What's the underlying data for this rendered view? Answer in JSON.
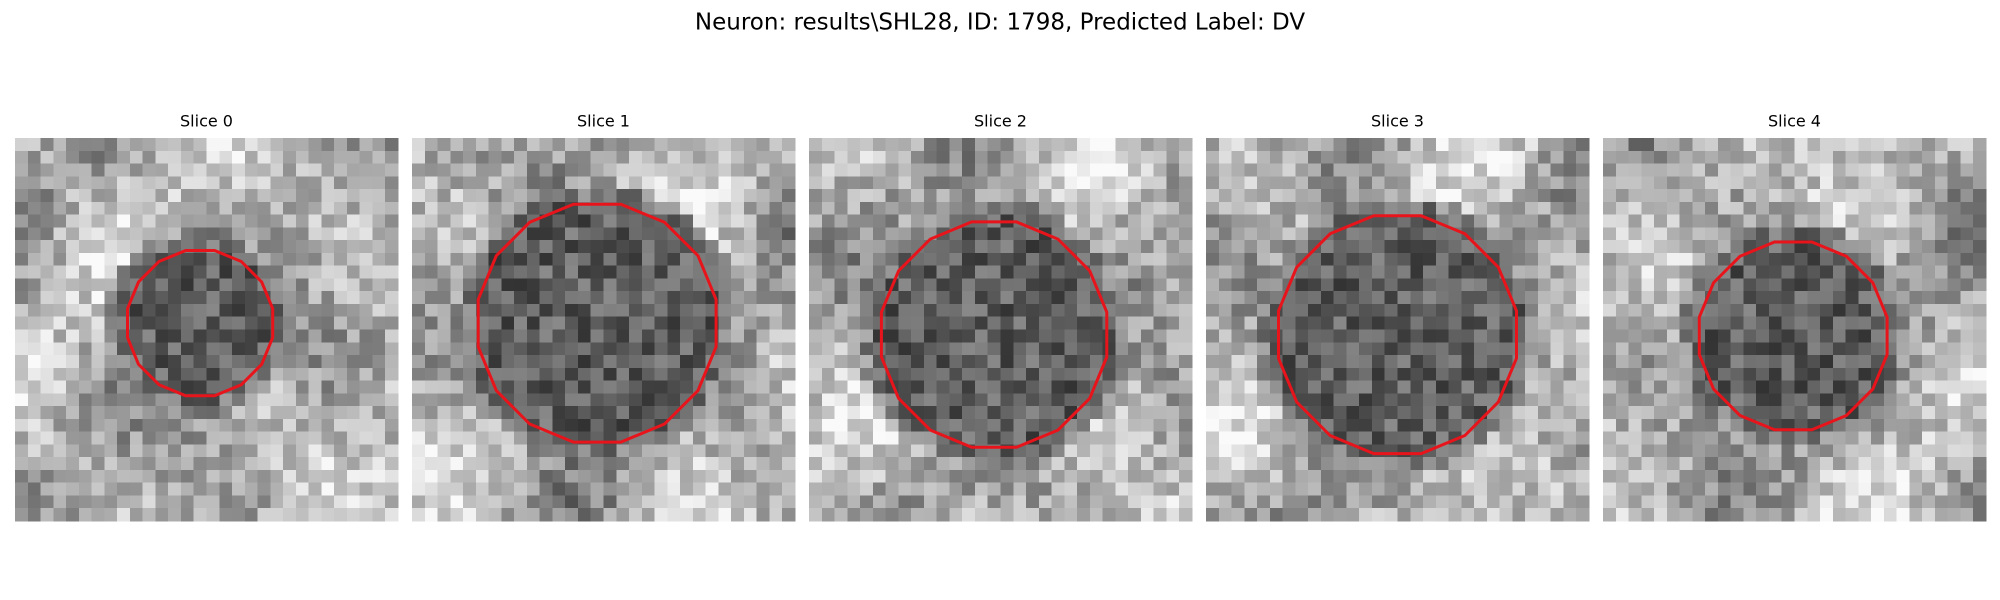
{
  "title": "Neuron: results\\SHL28, ID: 1798, Predicted Label: DV",
  "panels": [
    {
      "title": "Slice 0"
    },
    {
      "title": "Slice 1"
    },
    {
      "title": "Slice 2"
    },
    {
      "title": "Slice 3"
    },
    {
      "title": "Slice 4"
    }
  ]
}
